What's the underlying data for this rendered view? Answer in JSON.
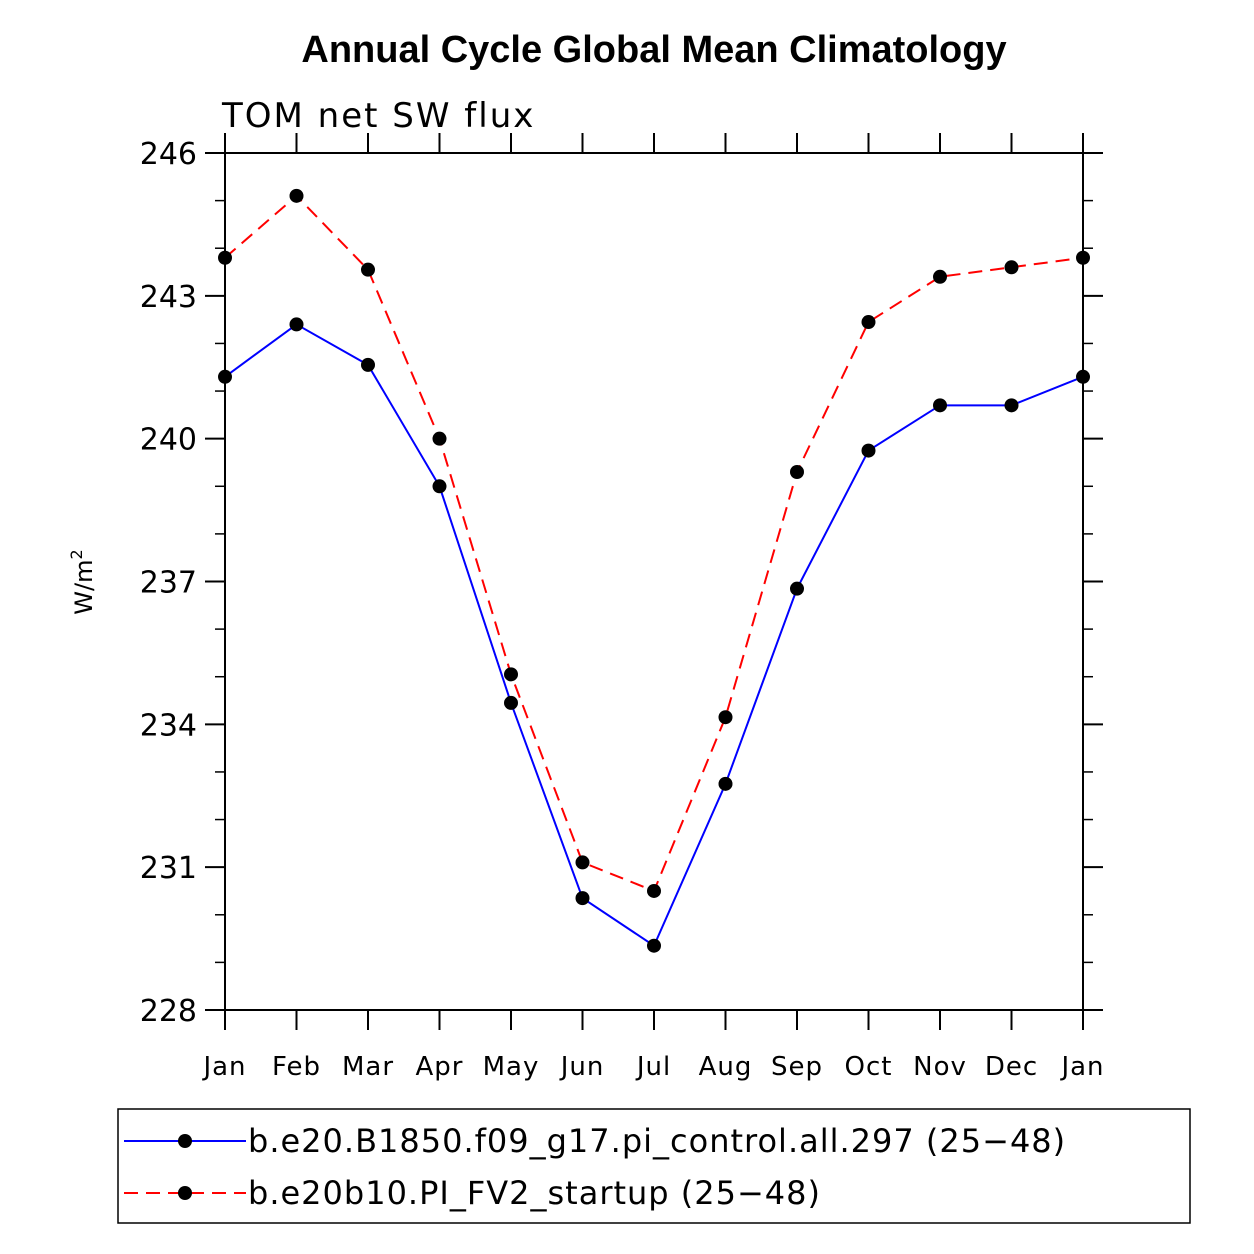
{
  "chart_data": {
    "type": "line",
    "title": "Annual Cycle Global Mean Climatology",
    "subtitle": "TOM net SW flux",
    "ylabel": "W/m",
    "ylabel_superscript": "2",
    "ylim": [
      228,
      246
    ],
    "yticks": [
      "228",
      "231",
      "234",
      "237",
      "240",
      "243",
      "246"
    ],
    "categories": [
      "Jan",
      "Feb",
      "Mar",
      "Apr",
      "May",
      "Jun",
      "Jul",
      "Aug",
      "Sep",
      "Oct",
      "Nov",
      "Dec",
      "Jan"
    ],
    "series": [
      {
        "name": "b.e20.B1850.f09_g17.pi_control.all.297 (25−48)",
        "color": "#0000ff",
        "dash": "solid",
        "values": [
          241.3,
          242.4,
          241.55,
          239.0,
          234.45,
          230.35,
          229.35,
          232.75,
          236.85,
          239.75,
          240.7,
          240.7,
          241.3
        ]
      },
      {
        "name": "b.e20b10.PI_FV2_startup (25−48)",
        "color": "#ff0000",
        "dash": "dashed",
        "values": [
          243.8,
          245.1,
          243.55,
          240.0,
          235.05,
          231.1,
          230.5,
          234.15,
          239.3,
          242.45,
          243.4,
          243.6,
          243.8
        ]
      }
    ],
    "legend_position": "bottom"
  }
}
